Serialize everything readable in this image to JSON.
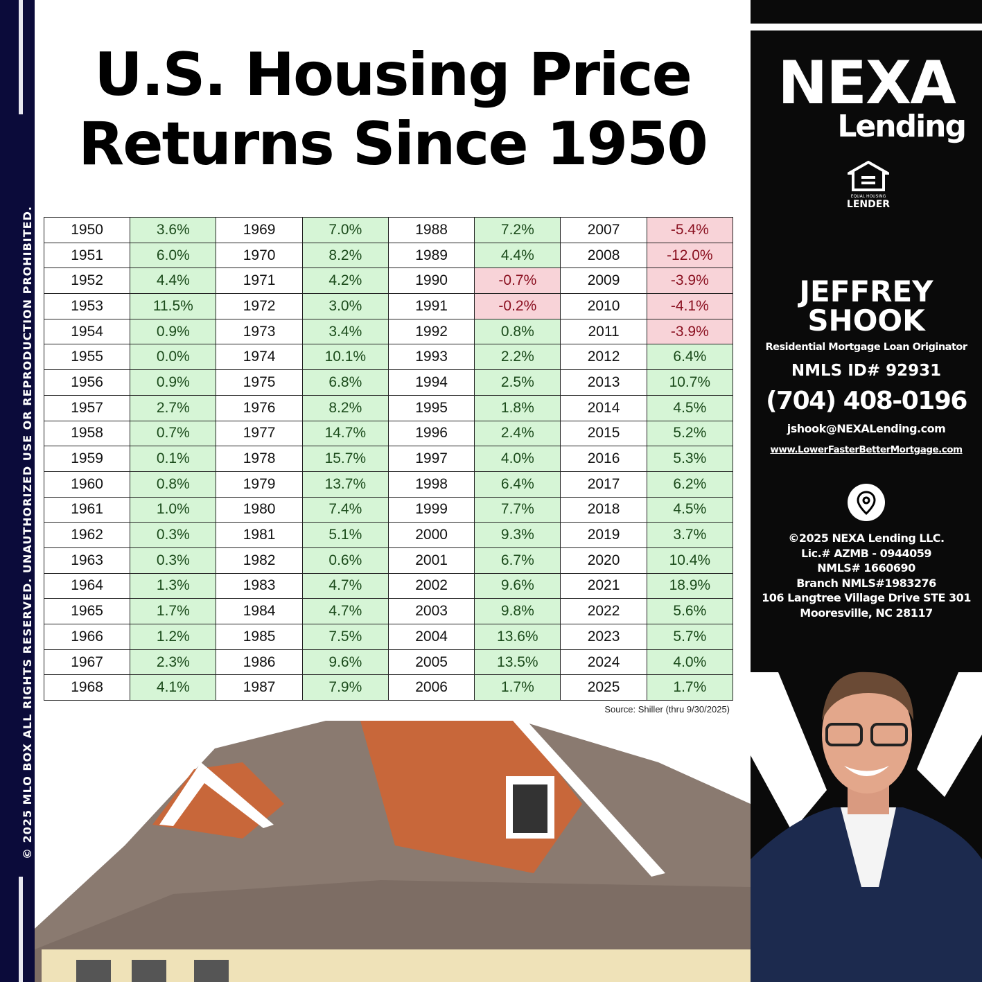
{
  "watermark": "© 2025 MLO BOX  ALL RIGHTS RESERVED. UNAUTHORIZED USE OR REPRODUCTION PROHIBITED.",
  "title_line1": "U.S. Housing Price",
  "title_line2": "Returns Since 1950",
  "table": {
    "columns": [
      [
        [
          "1950",
          "3.6%"
        ],
        [
          "1951",
          "6.0%"
        ],
        [
          "1952",
          "4.4%"
        ],
        [
          "1953",
          "11.5%"
        ],
        [
          "1954",
          "0.9%"
        ],
        [
          "1955",
          "0.0%"
        ],
        [
          "1956",
          "0.9%"
        ],
        [
          "1957",
          "2.7%"
        ],
        [
          "1958",
          "0.7%"
        ],
        [
          "1959",
          "0.1%"
        ],
        [
          "1960",
          "0.8%"
        ],
        [
          "1961",
          "1.0%"
        ],
        [
          "1962",
          "0.3%"
        ],
        [
          "1963",
          "0.3%"
        ],
        [
          "1964",
          "1.3%"
        ],
        [
          "1965",
          "1.7%"
        ],
        [
          "1966",
          "1.2%"
        ],
        [
          "1967",
          "2.3%"
        ],
        [
          "1968",
          "4.1%"
        ]
      ],
      [
        [
          "1969",
          "7.0%"
        ],
        [
          "1970",
          "8.2%"
        ],
        [
          "1971",
          "4.2%"
        ],
        [
          "1972",
          "3.0%"
        ],
        [
          "1973",
          "3.4%"
        ],
        [
          "1974",
          "10.1%"
        ],
        [
          "1975",
          "6.8%"
        ],
        [
          "1976",
          "8.2%"
        ],
        [
          "1977",
          "14.7%"
        ],
        [
          "1978",
          "15.7%"
        ],
        [
          "1979",
          "13.7%"
        ],
        [
          "1980",
          "7.4%"
        ],
        [
          "1981",
          "5.1%"
        ],
        [
          "1982",
          "0.6%"
        ],
        [
          "1983",
          "4.7%"
        ],
        [
          "1984",
          "4.7%"
        ],
        [
          "1985",
          "7.5%"
        ],
        [
          "1986",
          "9.6%"
        ],
        [
          "1987",
          "7.9%"
        ]
      ],
      [
        [
          "1988",
          "7.2%"
        ],
        [
          "1989",
          "4.4%"
        ],
        [
          "1990",
          "-0.7%"
        ],
        [
          "1991",
          "-0.2%"
        ],
        [
          "1992",
          "0.8%"
        ],
        [
          "1993",
          "2.2%"
        ],
        [
          "1994",
          "2.5%"
        ],
        [
          "1995",
          "1.8%"
        ],
        [
          "1996",
          "2.4%"
        ],
        [
          "1997",
          "4.0%"
        ],
        [
          "1998",
          "6.4%"
        ],
        [
          "1999",
          "7.7%"
        ],
        [
          "2000",
          "9.3%"
        ],
        [
          "2001",
          "6.7%"
        ],
        [
          "2002",
          "9.6%"
        ],
        [
          "2003",
          "9.8%"
        ],
        [
          "2004",
          "13.6%"
        ],
        [
          "2005",
          "13.5%"
        ],
        [
          "2006",
          "1.7%"
        ]
      ],
      [
        [
          "2007",
          "-5.4%"
        ],
        [
          "2008",
          "-12.0%"
        ],
        [
          "2009",
          "-3.9%"
        ],
        [
          "2010",
          "-4.1%"
        ],
        [
          "2011",
          "-3.9%"
        ],
        [
          "2012",
          "6.4%"
        ],
        [
          "2013",
          "10.7%"
        ],
        [
          "2014",
          "4.5%"
        ],
        [
          "2015",
          "5.2%"
        ],
        [
          "2016",
          "5.3%"
        ],
        [
          "2017",
          "6.2%"
        ],
        [
          "2018",
          "4.5%"
        ],
        [
          "2019",
          "3.7%"
        ],
        [
          "2020",
          "10.4%"
        ],
        [
          "2021",
          "18.9%"
        ],
        [
          "2022",
          "5.6%"
        ],
        [
          "2023",
          "5.7%"
        ],
        [
          "2024",
          "4.0%"
        ],
        [
          "2025",
          "1.7%"
        ]
      ]
    ],
    "colors": {
      "positive": "#d6f5d6",
      "negative": "#f8d3d8"
    }
  },
  "source": "Source: Shiller (thru 9/30/2025)",
  "panel": {
    "logo_main": "NEXA",
    "logo_sub": "Lending",
    "eho_label": "EQUAL HOUSING",
    "eho_label2": "LENDER",
    "name_line1": "JEFFREY",
    "name_line2": "SHOOK",
    "role": "Residential Mortgage Loan Originator",
    "nmls": "NMLS ID# 92931",
    "phone": "(704) 408-0196",
    "email": "jshook@NEXALending.com",
    "website": "www.LowerFasterBetterMortgage.com",
    "location_icon": "map-pin-icon",
    "legal": [
      "©2025 NEXA Lending LLC.",
      "Lic.# AZMB - 0944059",
      "NMLS# 1660690",
      "Branch NMLS#1983276",
      "106 Langtree Village Drive STE 301",
      "Mooresville, NC 28117"
    ]
  }
}
